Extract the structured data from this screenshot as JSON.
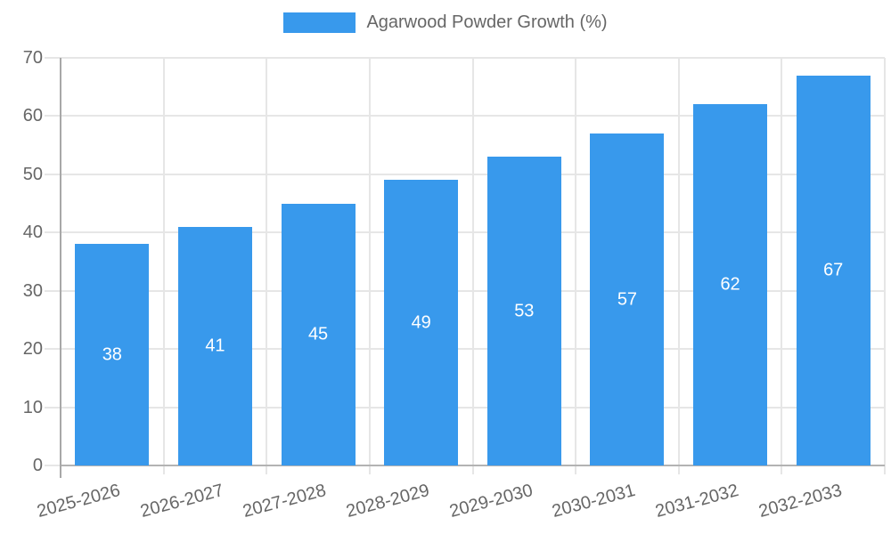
{
  "chart_data": {
    "type": "bar",
    "title": "Agarwood Powder Growth (%)",
    "categories": [
      "2025-2026",
      "2026-2027",
      "2027-2028",
      "2028-2029",
      "2029-2030",
      "2030-2031",
      "2031-2032",
      "2032-2033"
    ],
    "values": [
      38,
      41,
      45,
      49,
      53,
      57,
      62,
      67
    ],
    "data_labels": [
      "38",
      "41",
      "45",
      "49",
      "53",
      "57",
      "62",
      "67"
    ],
    "xlabel": "",
    "ylabel": "",
    "ylim": [
      0,
      70
    ],
    "ytick_labels": [
      "0",
      "10",
      "20",
      "30",
      "40",
      "50",
      "60",
      "70"
    ],
    "grid": true,
    "legend_position": "top-center",
    "bar_label_position": "center-inside"
  },
  "colors": {
    "bar": "#3899ec",
    "axis_text": "#666666",
    "bar_label_text": "#ffffff",
    "grid_line": "#e6e6e6",
    "axis_line": "#b3b3b3",
    "background": "#ffffff"
  }
}
